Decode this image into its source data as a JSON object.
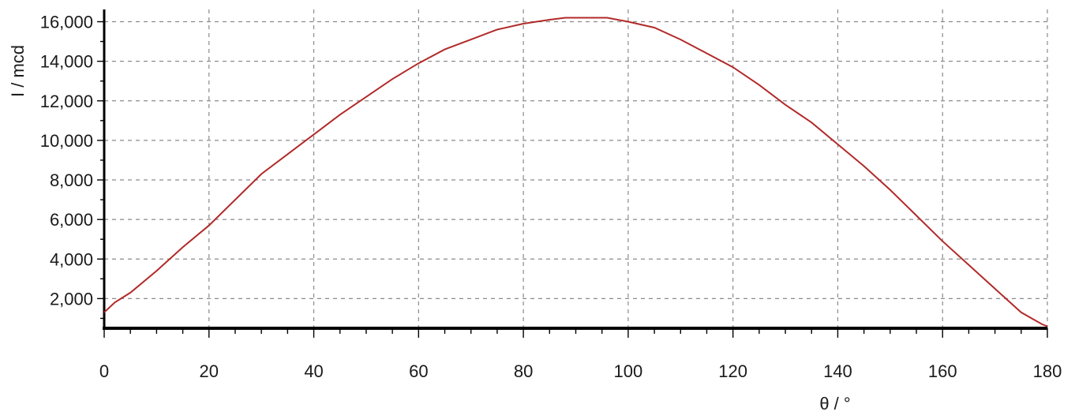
{
  "chart_data": {
    "type": "line",
    "xlabel": "θ / °",
    "ylabel": "I / mcd",
    "xlim": [
      0,
      180
    ],
    "ylim": [
      500,
      16300
    ],
    "x_ticks": [
      0,
      20,
      40,
      60,
      80,
      100,
      120,
      140,
      160,
      180
    ],
    "x_tick_labels": [
      "0",
      "20",
      "40",
      "60",
      "80",
      "100",
      "120",
      "140",
      "160",
      "180"
    ],
    "y_ticks": [
      2000,
      4000,
      6000,
      8000,
      10000,
      12000,
      14000,
      16000
    ],
    "y_tick_labels": [
      "2,000",
      "4,000",
      "6,000",
      "8,000",
      "10,000",
      "12,000",
      "14,000",
      "16,000"
    ],
    "grid": true,
    "series": [
      {
        "color": "#b22a2a",
        "x": [
          0,
          2,
          5,
          10,
          15,
          20,
          25,
          30,
          35,
          40,
          45,
          50,
          55,
          60,
          65,
          70,
          75,
          80,
          85,
          88,
          90,
          92,
          96,
          100,
          105,
          110,
          115,
          120,
          125,
          130,
          135,
          140,
          145,
          150,
          155,
          160,
          165,
          170,
          175,
          179,
          180
        ],
        "y": [
          1300,
          1800,
          2300,
          3400,
          4600,
          5700,
          7000,
          8300,
          9300,
          10300,
          11300,
          12200,
          13100,
          13900,
          14600,
          15100,
          15600,
          15900,
          16100,
          16200,
          16200,
          16200,
          16200,
          16000,
          15700,
          15100,
          14400,
          13700,
          12800,
          11800,
          10900,
          9800,
          8700,
          7500,
          6200,
          4900,
          3700,
          2500,
          1300,
          700,
          600
        ]
      }
    ]
  }
}
